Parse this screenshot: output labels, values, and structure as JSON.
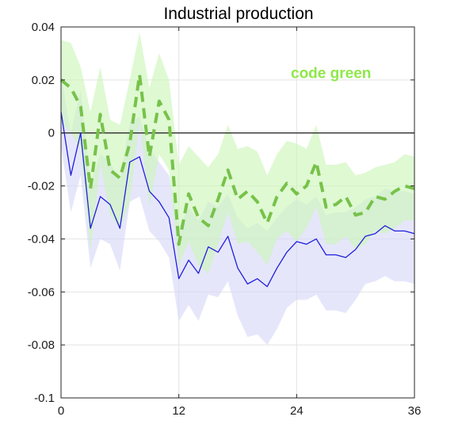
{
  "chart_data": {
    "type": "line",
    "title": "Industrial production",
    "xlabel": "",
    "ylabel": "",
    "xlim": [
      0,
      36
    ],
    "ylim": [
      -0.1,
      0.04
    ],
    "x_ticks": [
      0,
      12,
      24,
      36
    ],
    "x_tick_labels": [
      "0",
      "12",
      "24",
      "36"
    ],
    "y_ticks": [
      0.04,
      0.02,
      0,
      -0.02,
      -0.04,
      -0.06,
      -0.08,
      -0.1
    ],
    "y_tick_labels": [
      "0.04",
      "0.02",
      "0",
      "-0.02",
      "-0.04",
      "-0.06",
      "-0.08",
      "-0.1"
    ],
    "grid": true,
    "zero_line": 0,
    "annotation": {
      "text": "code green",
      "x": 27.5,
      "y": 0.0225,
      "color": "#8fe84a"
    },
    "x": [
      0,
      1,
      2,
      3,
      4,
      5,
      6,
      7,
      8,
      9,
      10,
      11,
      12,
      13,
      14,
      15,
      16,
      17,
      18,
      19,
      20,
      21,
      22,
      23,
      24,
      25,
      26,
      27,
      28,
      29,
      30,
      31,
      32,
      33,
      34,
      35,
      36
    ],
    "series": [
      {
        "color": "#77c24a",
        "band_color": "#ccf5b8",
        "style": "dashed",
        "values": [
          0.02,
          0.017,
          0.01,
          -0.021,
          0.007,
          -0.014,
          -0.017,
          -0.004,
          0.022,
          -0.009,
          0.012,
          0.005,
          -0.042,
          -0.023,
          -0.032,
          -0.035,
          -0.025,
          -0.014,
          -0.025,
          -0.022,
          -0.026,
          -0.034,
          -0.024,
          -0.019,
          -0.023,
          -0.02,
          -0.011,
          -0.028,
          -0.027,
          -0.024,
          -0.031,
          -0.03,
          -0.024,
          -0.025,
          -0.022,
          -0.02,
          -0.021
        ],
        "upper": [
          0.035,
          0.034,
          0.025,
          0.008,
          0.025,
          0.005,
          0.003,
          0.02,
          0.038,
          0.017,
          0.03,
          0.02,
          -0.012,
          -0.005,
          -0.009,
          -0.013,
          -0.008,
          0.003,
          -0.006,
          -0.005,
          -0.007,
          -0.016,
          -0.008,
          -0.003,
          -0.004,
          -0.006,
          0.003,
          -0.012,
          -0.012,
          -0.011,
          -0.016,
          -0.015,
          -0.013,
          -0.012,
          -0.011,
          -0.008,
          -0.009
        ],
        "lower": [
          0.004,
          0.0,
          -0.006,
          -0.045,
          -0.012,
          -0.031,
          -0.036,
          -0.026,
          0.004,
          -0.028,
          -0.008,
          -0.014,
          -0.05,
          -0.041,
          -0.05,
          -0.053,
          -0.042,
          -0.03,
          -0.042,
          -0.041,
          -0.045,
          -0.05,
          -0.04,
          -0.037,
          -0.041,
          -0.036,
          -0.028,
          -0.042,
          -0.042,
          -0.039,
          -0.044,
          -0.042,
          -0.037,
          -0.038,
          -0.036,
          -0.033,
          -0.033
        ]
      },
      {
        "color": "#1f1fdc",
        "band_color": "#d6d6f8",
        "style": "solid",
        "values": [
          0.008,
          -0.016,
          0.0,
          -0.036,
          -0.024,
          -0.027,
          -0.036,
          -0.011,
          -0.009,
          -0.022,
          -0.026,
          -0.032,
          -0.055,
          -0.048,
          -0.053,
          -0.043,
          -0.045,
          -0.039,
          -0.051,
          -0.057,
          -0.055,
          -0.058,
          -0.051,
          -0.045,
          -0.041,
          -0.042,
          -0.04,
          -0.046,
          -0.046,
          -0.047,
          -0.044,
          -0.039,
          -0.038,
          -0.035,
          -0.037,
          -0.037,
          -0.038
        ],
        "upper": [
          0.022,
          0.0,
          0.016,
          -0.019,
          -0.008,
          -0.011,
          -0.018,
          0.004,
          0.006,
          -0.006,
          -0.011,
          -0.016,
          -0.036,
          -0.028,
          -0.033,
          -0.026,
          -0.028,
          -0.023,
          -0.032,
          -0.036,
          -0.034,
          -0.037,
          -0.032,
          -0.028,
          -0.025,
          -0.027,
          -0.024,
          -0.031,
          -0.03,
          -0.03,
          -0.028,
          -0.025,
          -0.024,
          -0.021,
          -0.022,
          -0.022,
          -0.023
        ],
        "lower": [
          -0.005,
          -0.03,
          -0.016,
          -0.051,
          -0.04,
          -0.042,
          -0.052,
          -0.026,
          -0.024,
          -0.037,
          -0.041,
          -0.047,
          -0.071,
          -0.065,
          -0.071,
          -0.061,
          -0.062,
          -0.056,
          -0.069,
          -0.077,
          -0.076,
          -0.08,
          -0.074,
          -0.066,
          -0.063,
          -0.063,
          -0.061,
          -0.067,
          -0.067,
          -0.068,
          -0.063,
          -0.057,
          -0.056,
          -0.054,
          -0.056,
          -0.056,
          -0.057
        ]
      }
    ]
  }
}
